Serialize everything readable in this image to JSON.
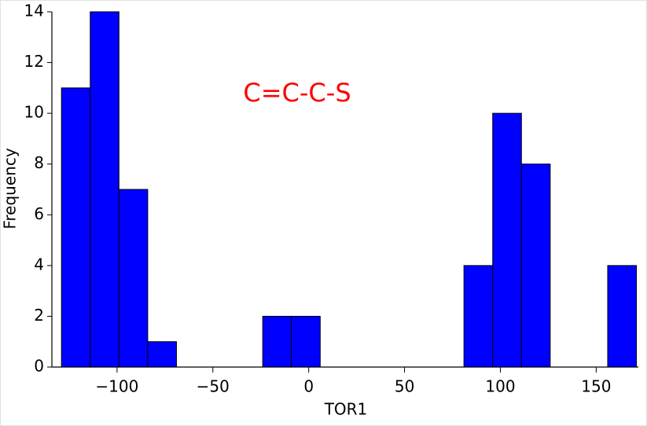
{
  "chart_data": {
    "type": "histogram",
    "annotation": "C=C-C-S",
    "x_label": "TOR1",
    "y_label": "Frequency",
    "bins": [
      -129,
      -114,
      -99,
      -84,
      -69,
      -54,
      -39,
      -24,
      -9,
      6,
      21,
      36,
      51,
      66,
      81,
      96,
      111,
      126,
      141,
      156,
      171
    ],
    "values": [
      11,
      14,
      7,
      1,
      0,
      0,
      0,
      2,
      2,
      0,
      0,
      0,
      0,
      0,
      4,
      10,
      8,
      0,
      0,
      4
    ],
    "color": "#0000ff",
    "xlim": [
      -134,
      172
    ],
    "xticks": [
      {
        "value": -100,
        "label": "−100"
      },
      {
        "value": -50,
        "label": "−50"
      },
      0,
      50,
      100,
      150
    ],
    "ylim": [
      0,
      14
    ],
    "yticks": [
      0,
      2,
      4,
      6,
      8,
      10,
      12,
      14
    ]
  }
}
